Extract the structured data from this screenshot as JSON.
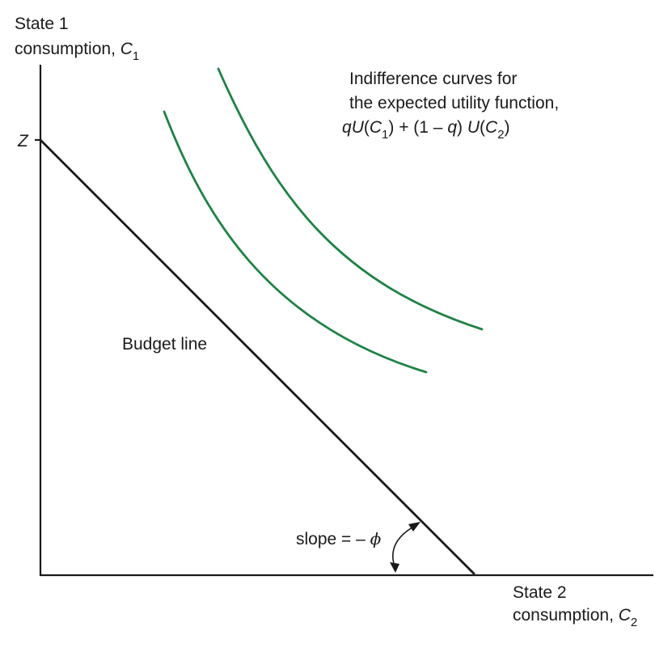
{
  "y_axis": {
    "line1": "State 1",
    "line2_text": "consumption, ",
    "var": "C",
    "sub": "1",
    "z_label": "Z"
  },
  "x_axis": {
    "line1": "State 2",
    "line2_text": "consumption, ",
    "var": "C",
    "sub": "2"
  },
  "indifference": {
    "line1": "Indifference curves for",
    "line2": "the expected utility function,",
    "f_q1": "q",
    "f_U1": "U",
    "f_open1": "(",
    "f_C1": "C",
    "f_sub1": "1",
    "f_mid": ") + (1 – ",
    "f_q2": "q",
    "f_close": ") ",
    "f_U2": "U",
    "f_open2": "(",
    "f_C2": "C",
    "f_sub2": "2",
    "f_end": ")"
  },
  "budget_label": "Budget line",
  "slope": {
    "text": "slope = – ",
    "symbol": "ϕ"
  },
  "colors": {
    "curve": "#1e8244",
    "ink": "#1a1a1a"
  }
}
